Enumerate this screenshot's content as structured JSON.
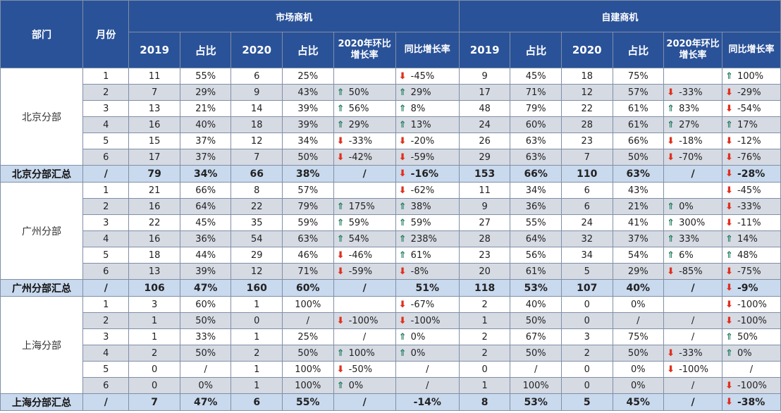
{
  "header": {
    "dept": "部门",
    "month": "月份",
    "group_market": "市场商机",
    "group_self": "自建商机",
    "sub": [
      "2019",
      "占比",
      "2020",
      "占比",
      "2020年环比增长率",
      "同比增长率",
      "2019",
      "占比",
      "2020",
      "占比",
      "2020年环比增长率",
      "同比增长率"
    ]
  },
  "icons": {
    "down": "down-arrow-icon",
    "up": "up-arrow-icon",
    "down_color": "#e0301e",
    "up_color": "#1e7b5e"
  },
  "sections": [
    {
      "name": "北京分部",
      "rows": [
        {
          "m": "1",
          "v": [
            "11",
            "55%",
            "6",
            "25%",
            {
              "a": "",
              "t": ""
            },
            {
              "a": "down",
              "t": "-45%"
            },
            "9",
            "45%",
            "18",
            "75%",
            {
              "a": "",
              "t": ""
            },
            {
              "a": "up",
              "t": "100%"
            }
          ]
        },
        {
          "m": "2",
          "v": [
            "7",
            "29%",
            "9",
            "43%",
            {
              "a": "up",
              "t": "50%"
            },
            {
              "a": "up",
              "t": "29%"
            },
            "17",
            "71%",
            "12",
            "57%",
            {
              "a": "down",
              "t": "-33%"
            },
            {
              "a": "down",
              "t": "-29%"
            }
          ]
        },
        {
          "m": "3",
          "v": [
            "13",
            "21%",
            "14",
            "39%",
            {
              "a": "up",
              "t": "56%"
            },
            {
              "a": "up",
              "t": "8%"
            },
            "48",
            "79%",
            "22",
            "61%",
            {
              "a": "up",
              "t": "83%"
            },
            {
              "a": "down",
              "t": "-54%"
            }
          ]
        },
        {
          "m": "4",
          "v": [
            "16",
            "40%",
            "18",
            "39%",
            {
              "a": "up",
              "t": "29%"
            },
            {
              "a": "up",
              "t": "13%"
            },
            "24",
            "60%",
            "28",
            "61%",
            {
              "a": "up",
              "t": "27%"
            },
            {
              "a": "up",
              "t": "17%"
            }
          ]
        },
        {
          "m": "5",
          "v": [
            "15",
            "37%",
            "12",
            "34%",
            {
              "a": "down",
              "t": "-33%"
            },
            {
              "a": "down",
              "t": "-20%"
            },
            "26",
            "63%",
            "23",
            "66%",
            {
              "a": "down",
              "t": "-18%"
            },
            {
              "a": "down",
              "t": "-12%"
            }
          ]
        },
        {
          "m": "6",
          "v": [
            "17",
            "37%",
            "7",
            "50%",
            {
              "a": "down",
              "t": "-42%"
            },
            {
              "a": "down",
              "t": "-59%"
            },
            "29",
            "63%",
            "7",
            "50%",
            {
              "a": "down",
              "t": "-70%"
            },
            {
              "a": "down",
              "t": "-76%"
            }
          ]
        }
      ],
      "summary": {
        "label": "北京分部汇总",
        "m": "/",
        "v": [
          "79",
          "34%",
          "66",
          "38%",
          {
            "a": "",
            "t": "/"
          },
          {
            "a": "down",
            "t": "-16%"
          },
          "153",
          "66%",
          "110",
          "63%",
          {
            "a": "",
            "t": "/"
          },
          {
            "a": "down",
            "t": "-28%"
          }
        ]
      }
    },
    {
      "name": "广州分部",
      "rows": [
        {
          "m": "1",
          "v": [
            "21",
            "66%",
            "8",
            "57%",
            {
              "a": "",
              "t": ""
            },
            {
              "a": "down",
              "t": "-62%"
            },
            "11",
            "34%",
            "6",
            "43%",
            {
              "a": "",
              "t": ""
            },
            {
              "a": "down",
              "t": "-45%"
            }
          ]
        },
        {
          "m": "2",
          "v": [
            "16",
            "64%",
            "22",
            "79%",
            {
              "a": "up",
              "t": "175%"
            },
            {
              "a": "up",
              "t": "38%"
            },
            "9",
            "36%",
            "6",
            "21%",
            {
              "a": "up",
              "t": "0%"
            },
            {
              "a": "down",
              "t": "-33%"
            }
          ]
        },
        {
          "m": "3",
          "v": [
            "22",
            "45%",
            "35",
            "59%",
            {
              "a": "up",
              "t": "59%"
            },
            {
              "a": "up",
              "t": "59%"
            },
            "27",
            "55%",
            "24",
            "41%",
            {
              "a": "up",
              "t": "300%"
            },
            {
              "a": "down",
              "t": "-11%"
            }
          ]
        },
        {
          "m": "4",
          "v": [
            "16",
            "36%",
            "54",
            "63%",
            {
              "a": "up",
              "t": "54%"
            },
            {
              "a": "up",
              "t": "238%"
            },
            "28",
            "64%",
            "32",
            "37%",
            {
              "a": "up",
              "t": "33%"
            },
            {
              "a": "up",
              "t": "14%"
            }
          ]
        },
        {
          "m": "5",
          "v": [
            "18",
            "44%",
            "29",
            "46%",
            {
              "a": "down",
              "t": "-46%"
            },
            {
              "a": "up",
              "t": "61%"
            },
            "23",
            "56%",
            "34",
            "54%",
            {
              "a": "up",
              "t": "6%"
            },
            {
              "a": "up",
              "t": "48%"
            }
          ]
        },
        {
          "m": "6",
          "v": [
            "13",
            "39%",
            "12",
            "71%",
            {
              "a": "down",
              "t": "-59%"
            },
            {
              "a": "down",
              "t": "-8%"
            },
            "20",
            "61%",
            "5",
            "29%",
            {
              "a": "down",
              "t": "-85%"
            },
            {
              "a": "down",
              "t": "-75%"
            }
          ]
        }
      ],
      "summary": {
        "label": "广州分部汇总",
        "m": "/",
        "v": [
          "106",
          "47%",
          "160",
          "60%",
          {
            "a": "",
            "t": "/"
          },
          {
            "a": "",
            "t": "51%"
          },
          "118",
          "53%",
          "107",
          "40%",
          {
            "a": "",
            "t": "/"
          },
          {
            "a": "down",
            "t": "-9%"
          }
        ]
      }
    },
    {
      "name": "上海分部",
      "rows": [
        {
          "m": "1",
          "v": [
            "3",
            "60%",
            "1",
            "100%",
            {
              "a": "",
              "t": ""
            },
            {
              "a": "down",
              "t": "-67%"
            },
            "2",
            "40%",
            "0",
            "0%",
            {
              "a": "",
              "t": ""
            },
            {
              "a": "down",
              "t": "-100%"
            }
          ]
        },
        {
          "m": "2",
          "v": [
            "1",
            "50%",
            "0",
            "/",
            {
              "a": "down",
              "t": "-100%"
            },
            {
              "a": "down",
              "t": "-100%"
            },
            "1",
            "50%",
            "0",
            "/",
            {
              "a": "",
              "t": "/"
            },
            {
              "a": "down",
              "t": "-100%"
            }
          ]
        },
        {
          "m": "3",
          "v": [
            "1",
            "33%",
            "1",
            "25%",
            {
              "a": "",
              "t": "/"
            },
            {
              "a": "up",
              "t": "0%"
            },
            "2",
            "67%",
            "3",
            "75%",
            {
              "a": "",
              "t": "/"
            },
            {
              "a": "up",
              "t": "50%"
            }
          ]
        },
        {
          "m": "4",
          "v": [
            "2",
            "50%",
            "2",
            "50%",
            {
              "a": "up",
              "t": "100%"
            },
            {
              "a": "up",
              "t": "0%"
            },
            "2",
            "50%",
            "2",
            "50%",
            {
              "a": "down",
              "t": "-33%"
            },
            {
              "a": "up",
              "t": "0%"
            }
          ]
        },
        {
          "m": "5",
          "v": [
            "0",
            "/",
            "1",
            "100%",
            {
              "a": "down",
              "t": "-50%"
            },
            {
              "a": "",
              "t": "/"
            },
            "0",
            "/",
            "0",
            "0%",
            {
              "a": "down",
              "t": "-100%"
            },
            {
              "a": "",
              "t": "/"
            }
          ]
        },
        {
          "m": "6",
          "v": [
            "0",
            "0%",
            "1",
            "100%",
            {
              "a": "up",
              "t": "0%"
            },
            {
              "a": "",
              "t": "/"
            },
            "1",
            "100%",
            "0",
            "0%",
            {
              "a": "",
              "t": "/"
            },
            {
              "a": "down",
              "t": "-100%"
            }
          ]
        }
      ],
      "summary": {
        "label": "上海分部汇总",
        "m": "/",
        "v": [
          "7",
          "47%",
          "6",
          "55%",
          {
            "a": "",
            "t": "/"
          },
          {
            "a": "",
            "t": "-14%"
          },
          "8",
          "53%",
          "5",
          "45%",
          {
            "a": "",
            "t": "/"
          },
          {
            "a": "down",
            "t": "-38%"
          }
        ]
      }
    }
  ]
}
